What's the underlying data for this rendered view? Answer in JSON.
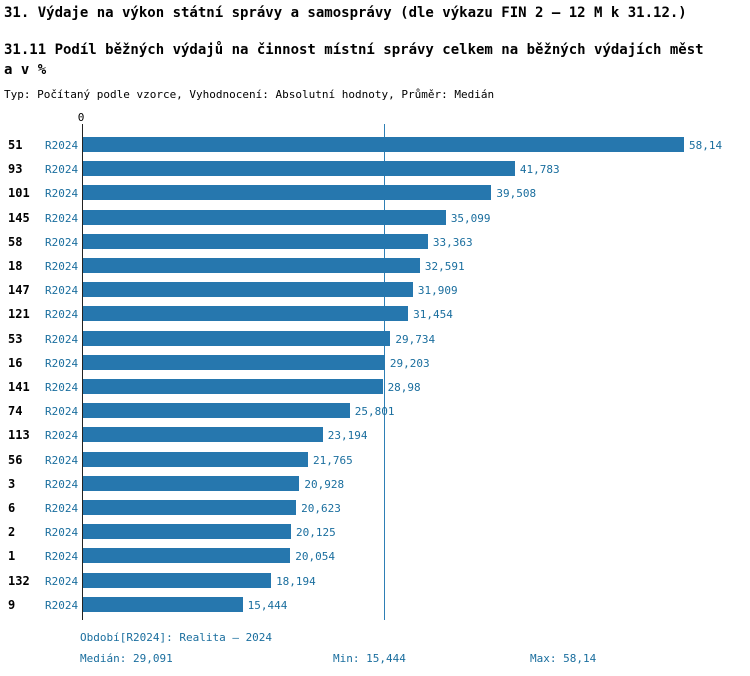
{
  "header": {
    "title_line1": "31. Výdaje na výkon státní správy a samosprávy (dle výkazu FIN 2 – 12 M k 31.12.)",
    "title_line2": "31.11 Podíl běžných výdajů na činnost místní správy celkem na běžných výdajích města v %",
    "meta": "Typ: Počítaný podle vzorce, Vyhodnocení: Absolutní hodnoty, Průměr: Medián"
  },
  "chart_data": {
    "type": "bar",
    "orientation": "horizontal",
    "title": "31.11 Podíl běžných výdajů na činnost místní správy celkem na běžných výdajích města v %",
    "xlabel": "",
    "ylabel": "",
    "xlim": [
      0,
      64
    ],
    "grid": false,
    "legend": false,
    "axis_zero_label": "0",
    "series_label": "R2024",
    "categories": [
      "51",
      "93",
      "101",
      "145",
      "58",
      "18",
      "147",
      "121",
      "53",
      "16",
      "141",
      "74",
      "113",
      "56",
      "3",
      "6",
      "2",
      "1",
      "132",
      "9"
    ],
    "values": [
      58.14,
      41.783,
      39.508,
      35.099,
      33.363,
      32.591,
      31.909,
      31.454,
      29.734,
      29.203,
      28.98,
      25.801,
      23.194,
      21.765,
      20.928,
      20.623,
      20.125,
      20.054,
      18.194,
      15.444
    ],
    "value_labels": [
      "58,14",
      "41,783",
      "39,508",
      "35,099",
      "33,363",
      "32,591",
      "31,909",
      "31,454",
      "29,734",
      "29,203",
      "28,98",
      "25,801",
      "23,194",
      "21,765",
      "20,928",
      "20,623",
      "20,125",
      "20,054",
      "18,194",
      "15,444"
    ],
    "median": 29.091,
    "min": 15.444,
    "max": 58.14,
    "bar_color": "#2677ae",
    "label_color": "#1a6e9e"
  },
  "footer": {
    "period_label": "Období[R2024]: Realita – 2024",
    "median_label": "Medián: 29,091",
    "min_label": "Min: 15,444",
    "max_label": "Max: 58,14"
  }
}
